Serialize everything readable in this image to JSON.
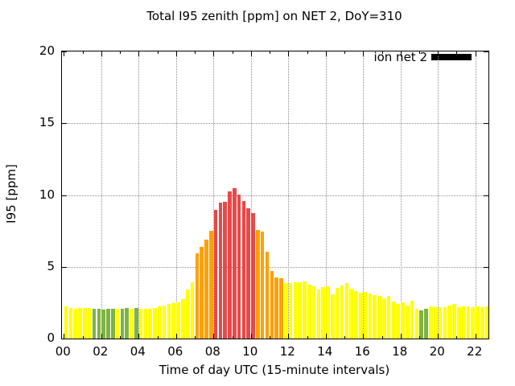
{
  "figure": {
    "title": "Total I95 zenith [ppm] on NET 2, DoY=310",
    "xlabel": "Time of day UTC (15-minute intervals)",
    "ylabel": "I95 [ppm]",
    "legend_label": "ion net 2"
  },
  "chart_data": {
    "type": "bar",
    "title": "Total I95 zenith [ppm] on NET 2, DoY=310",
    "xlabel": "Time of day UTC (15-minute intervals)",
    "ylabel": "I95 [ppm]",
    "legend": {
      "label": "ion net 2",
      "swatch_color": "#000000",
      "position": "top-right-inside"
    },
    "grid": "dotted",
    "ylim": [
      0,
      20
    ],
    "yticks": [
      0,
      5,
      10,
      15,
      20
    ],
    "x_axis_hours_range": [
      -0.1,
      22.7
    ],
    "xticks_hours": [
      0,
      2,
      4,
      6,
      8,
      10,
      12,
      14,
      16,
      18,
      20,
      22
    ],
    "xtick_labels": [
      "00",
      "02",
      "04",
      "06",
      "08",
      "10",
      "12",
      "14",
      "16",
      "18",
      "20",
      "22"
    ],
    "minor_xticks_hours": [
      1,
      3,
      5,
      7,
      9,
      11,
      13,
      15,
      17,
      19,
      21
    ],
    "interval_minutes": 15,
    "color_map": {
      "Y": "#ffff00",
      "G": "#7cb342",
      "O": "#ffa000",
      "R": "#e84848"
    },
    "times": [
      "00:00",
      "00:15",
      "00:30",
      "00:45",
      "01:00",
      "01:15",
      "01:30",
      "01:45",
      "02:00",
      "02:15",
      "02:30",
      "02:45",
      "03:00",
      "03:15",
      "03:30",
      "03:45",
      "04:00",
      "04:15",
      "04:30",
      "04:45",
      "05:00",
      "05:15",
      "05:30",
      "05:45",
      "06:00",
      "06:15",
      "06:30",
      "06:45",
      "07:00",
      "07:15",
      "07:30",
      "07:45",
      "08:00",
      "08:15",
      "08:30",
      "08:45",
      "09:00",
      "09:15",
      "09:30",
      "09:45",
      "10:00",
      "10:15",
      "10:30",
      "10:45",
      "11:00",
      "11:15",
      "11:30",
      "11:45",
      "12:00",
      "12:15",
      "12:30",
      "12:45",
      "13:00",
      "13:15",
      "13:30",
      "13:45",
      "14:00",
      "14:15",
      "14:30",
      "14:45",
      "15:00",
      "15:15",
      "15:30",
      "15:45",
      "16:00",
      "16:15",
      "16:30",
      "16:45",
      "17:00",
      "17:15",
      "17:30",
      "17:45",
      "18:00",
      "18:15",
      "18:30",
      "18:45",
      "19:00",
      "19:15",
      "19:30",
      "19:45",
      "20:00",
      "20:15",
      "20:30",
      "20:45",
      "21:00",
      "21:15",
      "21:30",
      "21:45",
      "22:00",
      "22:15",
      "22:30"
    ],
    "values": [
      2.25,
      2.15,
      2.1,
      2.15,
      2.15,
      2.15,
      2.1,
      2.05,
      2.0,
      2.05,
      2.1,
      2.1,
      2.1,
      2.15,
      2.1,
      2.15,
      2.05,
      2.05,
      2.1,
      2.15,
      2.25,
      2.3,
      2.4,
      2.45,
      2.5,
      2.75,
      3.4,
      3.95,
      5.95,
      6.4,
      6.9,
      7.5,
      8.95,
      9.45,
      9.55,
      10.25,
      10.5,
      10.05,
      9.6,
      9.1,
      8.75,
      7.55,
      7.45,
      6.05,
      4.7,
      4.25,
      4.2,
      3.85,
      3.85,
      3.95,
      3.9,
      4.0,
      3.75,
      3.65,
      3.4,
      3.6,
      3.65,
      3.1,
      3.55,
      3.7,
      3.85,
      3.5,
      3.3,
      3.2,
      3.25,
      3.15,
      3.0,
      2.95,
      2.8,
      2.95,
      2.55,
      2.4,
      2.5,
      2.3,
      2.65,
      2.1,
      1.95,
      2.05,
      2.25,
      2.2,
      2.2,
      2.2,
      2.3,
      2.4,
      2.2,
      2.25,
      2.25,
      2.2,
      2.25,
      2.2,
      2.25
    ],
    "colors": "YYYYYYGGGGGYGGYGYYYYYYYYYYYYOOOORRRRRRRRROOOOOOYYYYYYYYYYYYYYYYYYYYYYYYYYYYYGGYYYYYYYYYYYYY"
  }
}
